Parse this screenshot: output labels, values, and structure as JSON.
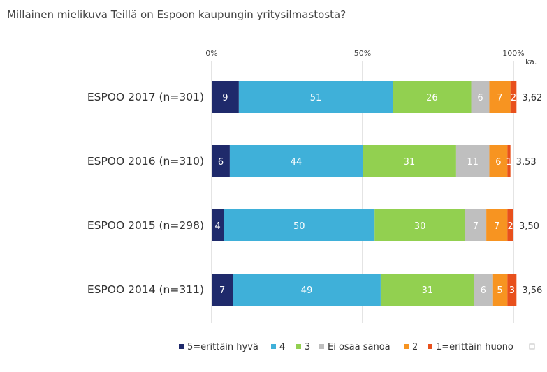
{
  "chart_data": {
    "type": "bar",
    "orientation": "horizontal-stacked-percent",
    "title": "Millainen mielikuva Teillä on Espoon kaupungin yritysilmastosta?",
    "xlim": [
      0,
      100
    ],
    "x_ticks": [
      "0%",
      "50%",
      "100%"
    ],
    "mean_header": "ka.",
    "categories": [
      "ESPOO 2017 (n=301)",
      "ESPOO 2016 (n=310)",
      "ESPOO 2015 (n=298)",
      "ESPOO 2014 (n=311)"
    ],
    "means": [
      "3,62",
      "3,53",
      "3,50",
      "3,56"
    ],
    "series": [
      {
        "name": "5=erittäin hyvä",
        "color": "#1f2a6b",
        "label_color": "#ffffff",
        "values": [
          9,
          6,
          4,
          7
        ]
      },
      {
        "name": "4",
        "color": "#3fb0d9",
        "label_color": "#ffffff",
        "values": [
          51,
          44,
          50,
          49
        ]
      },
      {
        "name": "3",
        "color": "#92d050",
        "label_color": "#ffffff",
        "values": [
          26,
          31,
          30,
          31
        ]
      },
      {
        "name": "Ei osaa sanoa",
        "color": "#bfbfbf",
        "label_color": "#ffffff",
        "values": [
          6,
          11,
          7,
          6
        ]
      },
      {
        "name": "2",
        "color": "#f79421",
        "label_color": "#ffffff",
        "values": [
          7,
          6,
          7,
          5
        ]
      },
      {
        "name": "1=erittäin huono",
        "color": "#e8501c",
        "label_color": "#ffffff",
        "values": [
          2,
          1,
          2,
          3
        ]
      },
      {
        "name": "",
        "color": "#ffffff",
        "label_color": "#333333",
        "values": [
          0,
          0,
          0,
          0
        ]
      }
    ],
    "grid": "vertical-at-ticks",
    "legend": "bottom"
  }
}
